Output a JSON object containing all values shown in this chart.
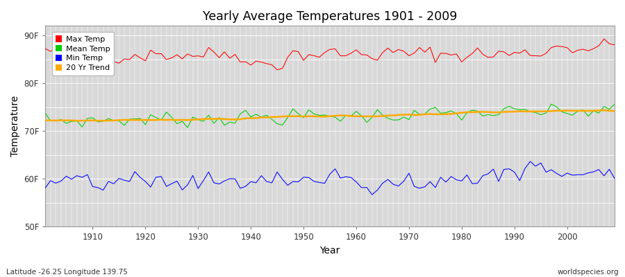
{
  "title": "Yearly Average Temperatures 1901 - 2009",
  "xlabel": "Year",
  "ylabel": "Temperature",
  "lat_lon_text": "Latitude -26.25 Longitude 139.75",
  "watermark": "worldspecies.org",
  "ylim": [
    50,
    92
  ],
  "yticks": [
    50,
    60,
    70,
    80,
    90
  ],
  "ytick_labels": [
    "50F",
    "60F",
    "70F",
    "80F",
    "90F"
  ],
  "xlim": [
    1901,
    2009
  ],
  "xticks": [
    1910,
    1920,
    1930,
    1940,
    1950,
    1960,
    1970,
    1980,
    1990,
    2000
  ],
  "figure_bg": "#ffffff",
  "plot_bg": "#d8d8d8",
  "grid_color": "#ffffff",
  "max_temp_color": "#ff0000",
  "mean_temp_color": "#00cc00",
  "min_temp_color": "#0000ff",
  "trend_color": "#ffaa00",
  "legend_labels": [
    "Max Temp",
    "Mean Temp",
    "Min Temp",
    "20 Yr Trend"
  ],
  "seed": 42
}
